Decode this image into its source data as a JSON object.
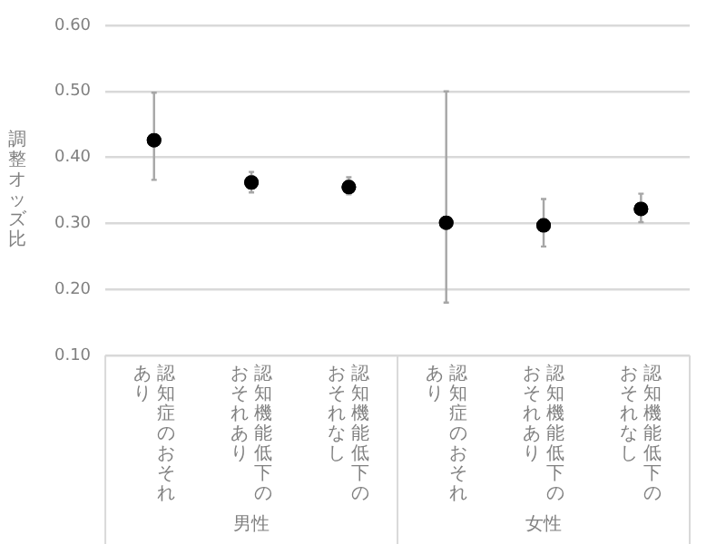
{
  "chart_data": {
    "type": "scatter",
    "ylabel": "調整オッズ比",
    "categories": [
      "認知症のおそれあり",
      "認知機能低下のおそれあり",
      "認知機能低下のおそれなし",
      "認知症のおそれあり",
      "認知機能低下のおそれあり",
      "認知機能低下のおそれなし"
    ],
    "series": [
      {
        "color": "#000000",
        "values": [
          0.426,
          0.362,
          0.355,
          0.301,
          0.297,
          0.322
        ],
        "errors": [
          [
            0.366,
            0.498
          ],
          [
            0.347,
            0.378
          ],
          [
            0.344,
            0.37
          ],
          [
            0.18,
            0.5
          ],
          [
            0.265,
            0.337
          ],
          [
            0.302,
            0.345
          ]
        ]
      }
    ],
    "annotations": [
      "男性",
      "女性"
    ],
    "ylim": [
      0.1,
      0.6
    ],
    "yticks": [
      {
        "value": 0.1,
        "label": "0.10"
      },
      {
        "value": 0.2,
        "label": "0.20"
      },
      {
        "value": 0.3,
        "label": "0.30"
      },
      {
        "value": 0.4,
        "label": "0.40"
      },
      {
        "value": 0.5,
        "label": "0.50"
      },
      {
        "value": 0.6,
        "label": "0.60"
      }
    ],
    "grid": "y",
    "marker": "circle",
    "legend": false
  }
}
